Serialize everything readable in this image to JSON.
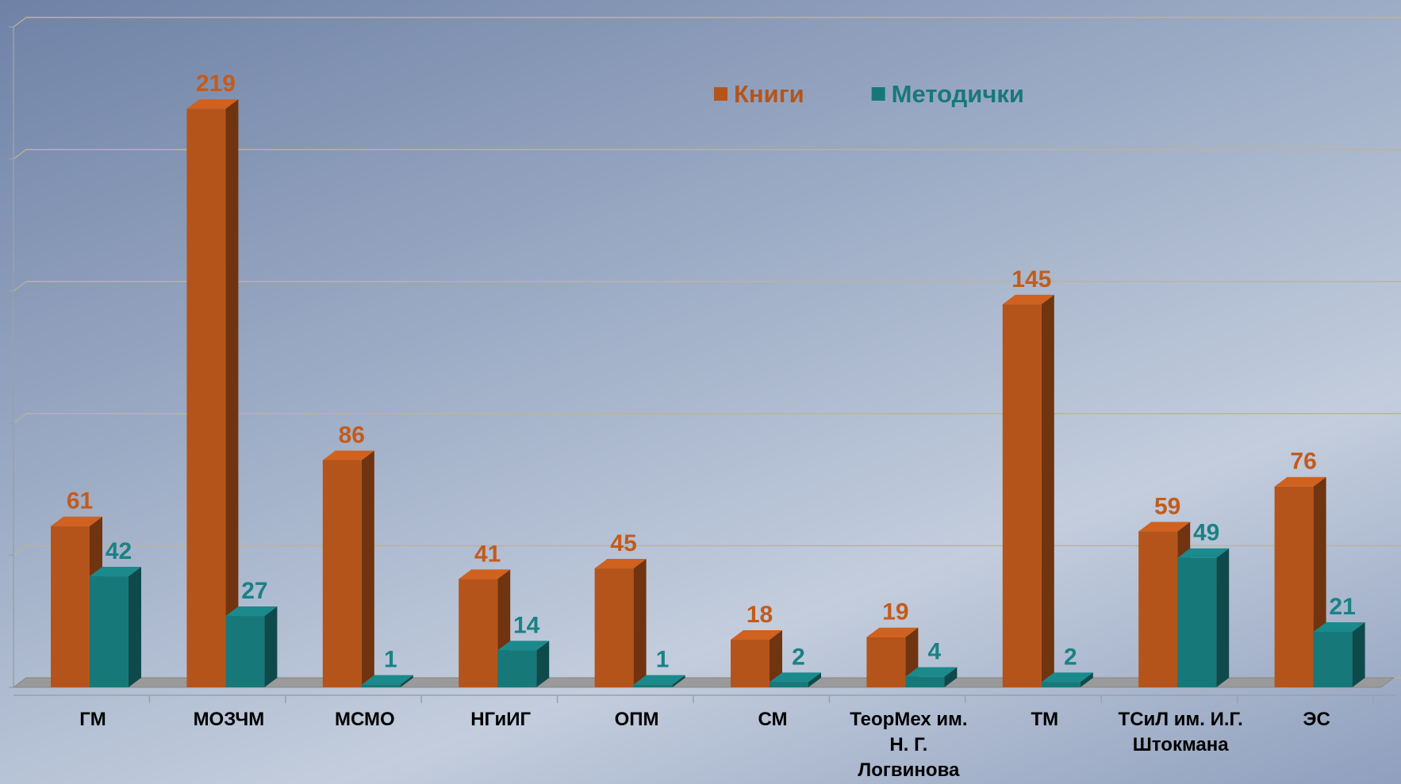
{
  "chart_data": {
    "type": "bar3d",
    "categories": [
      "ГМ",
      "МОЗЧМ",
      "МСМО",
      "НГиИГ",
      "ОПМ",
      "СМ",
      "ТеорМех им. Н. Г. Логвинова",
      "ТМ",
      "ТСиЛ им. И.Г. Штокмана",
      "ЭС"
    ],
    "series": [
      {
        "name": "Книги",
        "color": "#b5541a",
        "values": [
          61,
          219,
          86,
          41,
          45,
          18,
          19,
          145,
          59,
          76
        ]
      },
      {
        "name": "Методички",
        "color": "#17787a",
        "values": [
          42,
          27,
          1,
          14,
          1,
          2,
          4,
          2,
          49,
          21
        ]
      }
    ],
    "ylim": [
      0,
      250
    ],
    "yticks": [
      0,
      50,
      100,
      150,
      200,
      250
    ],
    "grid": true,
    "legend": "top"
  }
}
